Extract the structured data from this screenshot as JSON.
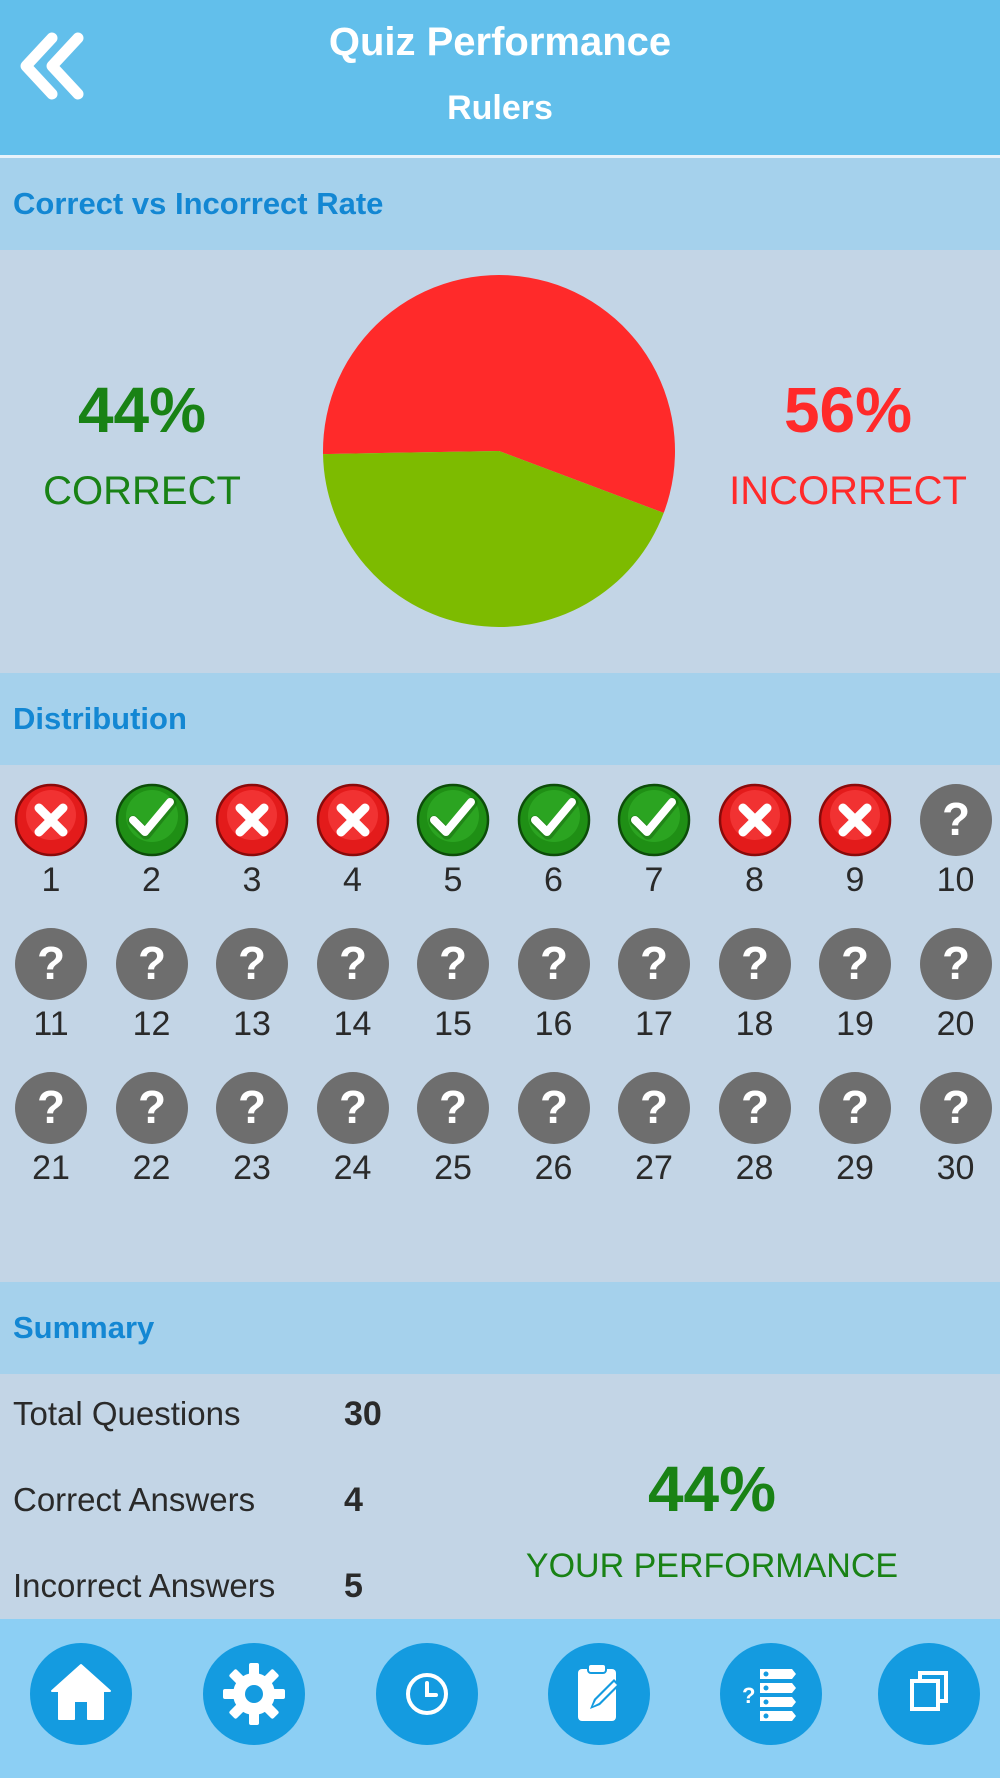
{
  "header": {
    "title": "Quiz Performance",
    "subtitle": "Rulers",
    "back_icon": "double-chevron-left-icon"
  },
  "rate_section": {
    "title": "Correct vs Incorrect Rate",
    "correct_pct": "44%",
    "correct_label": "CORRECT",
    "incorrect_pct": "56%",
    "incorrect_label": "INCORRECT",
    "pie": {
      "correct_fraction": 0.44,
      "incorrect_fraction": 0.56,
      "correct_color": "#7dbb00",
      "incorrect_color": "#ff2a2a"
    }
  },
  "distribution": {
    "title": "Distribution",
    "questions": [
      {
        "number": "1",
        "status": "incorrect"
      },
      {
        "number": "2",
        "status": "correct"
      },
      {
        "number": "3",
        "status": "incorrect"
      },
      {
        "number": "4",
        "status": "incorrect"
      },
      {
        "number": "5",
        "status": "correct"
      },
      {
        "number": "6",
        "status": "correct"
      },
      {
        "number": "7",
        "status": "correct"
      },
      {
        "number": "8",
        "status": "incorrect"
      },
      {
        "number": "9",
        "status": "incorrect"
      },
      {
        "number": "10",
        "status": "unanswered"
      },
      {
        "number": "11",
        "status": "unanswered"
      },
      {
        "number": "12",
        "status": "unanswered"
      },
      {
        "number": "13",
        "status": "unanswered"
      },
      {
        "number": "14",
        "status": "unanswered"
      },
      {
        "number": "15",
        "status": "unanswered"
      },
      {
        "number": "16",
        "status": "unanswered"
      },
      {
        "number": "17",
        "status": "unanswered"
      },
      {
        "number": "18",
        "status": "unanswered"
      },
      {
        "number": "19",
        "status": "unanswered"
      },
      {
        "number": "20",
        "status": "unanswered"
      },
      {
        "number": "21",
        "status": "unanswered"
      },
      {
        "number": "22",
        "status": "unanswered"
      },
      {
        "number": "23",
        "status": "unanswered"
      },
      {
        "number": "24",
        "status": "unanswered"
      },
      {
        "number": "25",
        "status": "unanswered"
      },
      {
        "number": "26",
        "status": "unanswered"
      },
      {
        "number": "27",
        "status": "unanswered"
      },
      {
        "number": "28",
        "status": "unanswered"
      },
      {
        "number": "29",
        "status": "unanswered"
      },
      {
        "number": "30",
        "status": "unanswered"
      }
    ]
  },
  "summary": {
    "title": "Summary",
    "rows": [
      {
        "label": "Total Questions",
        "value": "30"
      },
      {
        "label": "Correct Answers",
        "value": "4"
      },
      {
        "label": "Incorrect Answers",
        "value": "5"
      }
    ],
    "performance_value": "44%",
    "performance_label": "YOUR PERFORMANCE"
  },
  "toolbar": {
    "buttons": [
      {
        "icon": "home-icon"
      },
      {
        "icon": "gear-icon"
      },
      {
        "icon": "clock-icon"
      },
      {
        "icon": "clipboard-edit-icon"
      },
      {
        "icon": "quiz-list-icon"
      },
      {
        "icon": "copy-icon"
      }
    ]
  },
  "colors": {
    "header_bg": "#62bfeb",
    "section_bar_bg": "#a5d1ec",
    "section_title": "#1387d3",
    "page_bg": "#c3d5e6",
    "correct_green": "#198215",
    "incorrect_red": "#ff2a2a",
    "toolbar_bg": "#8ccff4",
    "toolbar_button": "#149be0"
  }
}
